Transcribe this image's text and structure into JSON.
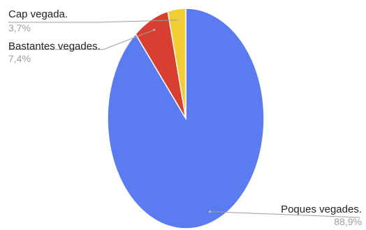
{
  "chart_data": {
    "type": "pie",
    "title": "",
    "labels": [
      "Poques vegades.",
      "Bastantes vegades.",
      "Cap vegada."
    ],
    "values": [
      88.9,
      7.4,
      3.7
    ],
    "value_labels": [
      "88,9%",
      "7,4%",
      "3,7%"
    ],
    "colors": [
      "#5b7bf0",
      "#d93f30",
      "#f2cc33"
    ],
    "legend": "none",
    "start_angle": "12-o-clock, clockwise"
  }
}
